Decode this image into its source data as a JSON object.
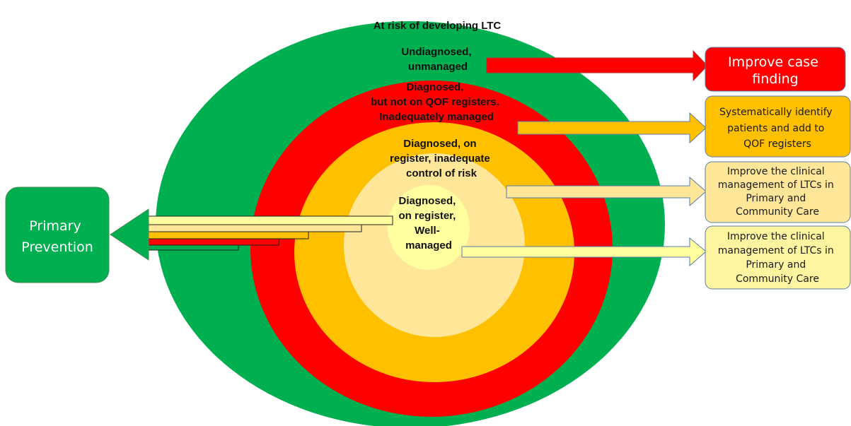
{
  "colors": {
    "green": "#00B050",
    "red": "#FF0000",
    "amber": "#FFC000",
    "light_amber": "#FFE699",
    "pale_yellow": "#FFFFA0",
    "outline": "#5A7BA8",
    "box_light_amber": "#FFE699",
    "box_pale_yellow": "#FFF5A0"
  },
  "rings": {
    "green_label": "At risk of developing LTC",
    "red_label": [
      "Undiagnosed,",
      "unmanaged"
    ],
    "amber_label": [
      "Diagnosed,",
      "but not on QOF registers.",
      "Inadequately managed"
    ],
    "light_amber_label": [
      "Diagnosed, on",
      "register, inadequate",
      "control of risk"
    ],
    "core_label": [
      "Diagnosed,",
      "on register,",
      "Well-",
      "managed"
    ]
  },
  "boxes": {
    "case_finding": [
      "Improve case",
      "finding"
    ],
    "identify": [
      "Systematically identify",
      "patients and add to",
      "QOF registers"
    ],
    "clinical_1": [
      "Improve the clinical",
      "management of LTCs in",
      "Primary and",
      "Community Care"
    ],
    "clinical_2": [
      "Improve the clinical",
      "management of LTCs in",
      "Primary and",
      "Community Care"
    ],
    "primary_prevention": [
      "Primary",
      "Prevention"
    ]
  }
}
